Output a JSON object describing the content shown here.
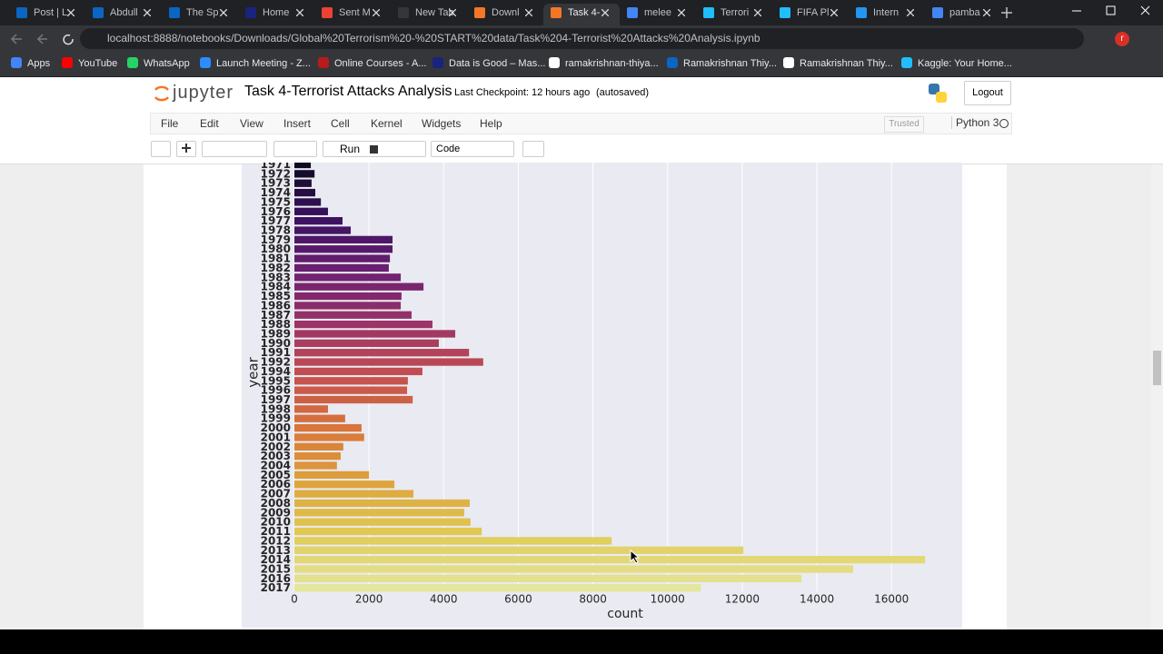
{
  "browser": {
    "tabs": [
      "Post | L",
      "Abdull",
      "The Sp",
      "Home",
      "Sent M",
      "New Tab",
      "Downl",
      "Task 4-",
      "melee",
      "Terrori",
      "FIFA Pl",
      "Intern",
      "pamba"
    ],
    "active_tab": 7,
    "url": "localhost:8888/notebooks/Downloads/Global%20Terrorism%20-%20START%20data/Task%204-Terrorist%20Attacks%20Analysis.ipynb",
    "bookmarks": [
      "Apps",
      "YouTube",
      "WhatsApp",
      "Launch Meeting - Z...",
      "Online Courses - A...",
      "Data is Good – Mas...",
      "ramakrishnan-thiya...",
      "Ramakrishnan Thiy...",
      "Ramakrishnan Thiy...",
      "Kaggle: Your Home..."
    ],
    "profile": "r"
  },
  "jupyter": {
    "logo": "jupyter",
    "title": "Task 4-Terrorist Attacks Analysis",
    "checkpoint": "Last Checkpoint: 12 hours ago",
    "autosaved": "(autosaved)",
    "logout": "Logout",
    "menu": [
      "File",
      "Edit",
      "View",
      "Insert",
      "Cell",
      "Kernel",
      "Widgets",
      "Help"
    ],
    "trusted": "Trusted",
    "kernel": "Python 3",
    "run": "Run",
    "cell_type": "Code"
  },
  "chart_data": {
    "type": "barh",
    "xlabel": "count",
    "ylabel": "year",
    "categories": [
      "1971",
      "1972",
      "1973",
      "1974",
      "1975",
      "1976",
      "1977",
      "1978",
      "1979",
      "1980",
      "1981",
      "1982",
      "1983",
      "1984",
      "1985",
      "1986",
      "1987",
      "1988",
      "1989",
      "1990",
      "1991",
      "1992",
      "1994",
      "1995",
      "1996",
      "1997",
      "1998",
      "1999",
      "2000",
      "2001",
      "2002",
      "2003",
      "2004",
      "2005",
      "2006",
      "2007",
      "2008",
      "2009",
      "2010",
      "2011",
      "2012",
      "2013",
      "2014",
      "2015",
      "2016",
      "2017"
    ],
    "values": [
      440,
      540,
      460,
      560,
      710,
      900,
      1290,
      1510,
      2630,
      2630,
      2560,
      2530,
      2850,
      3460,
      2870,
      2850,
      3140,
      3700,
      4310,
      3870,
      4680,
      5060,
      3430,
      3040,
      3020,
      3170,
      900,
      1360,
      1800,
      1870,
      1310,
      1240,
      1140,
      2000,
      2680,
      3190,
      4700,
      4550,
      4720,
      5020,
      8500,
      12030,
      16900,
      14970,
      13590,
      10890
    ],
    "xlim": [
      0,
      17870
    ],
    "xticks": [
      0,
      2000,
      4000,
      6000,
      8000,
      10000,
      12000,
      14000,
      16000
    ],
    "grid": true,
    "palette": [
      "#0d0a22",
      "#3b1260",
      "#6a2070",
      "#9b3368",
      "#c4504f",
      "#d9763a",
      "#dda33a",
      "#e0cb55",
      "#e4e69c"
    ]
  }
}
